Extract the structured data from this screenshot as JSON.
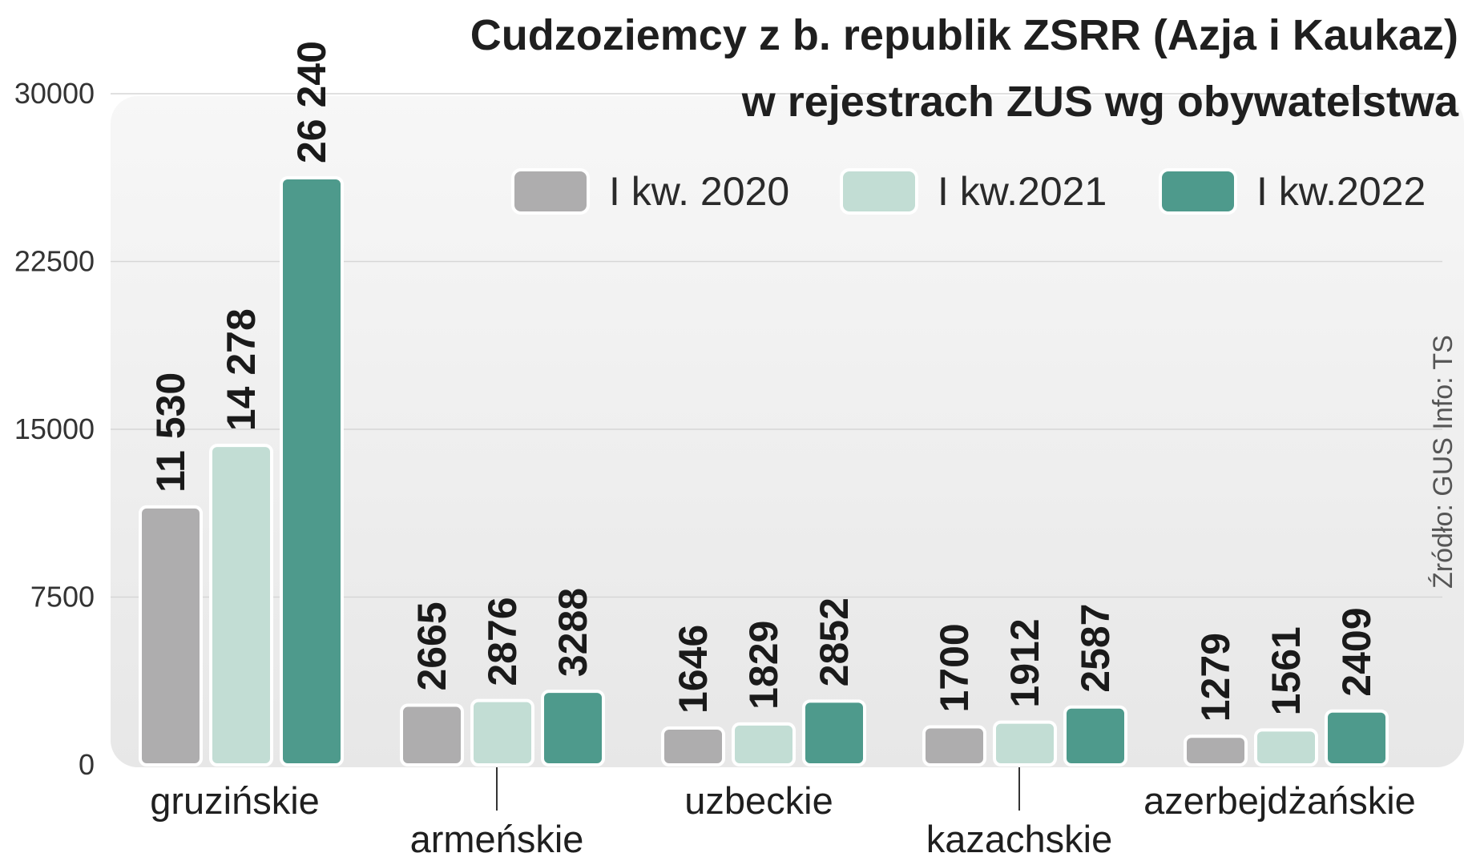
{
  "chart_data": {
    "type": "bar",
    "title": [
      "Cudzoziemcy z b. republik ZSRR (Azja i Kaukaz)",
      "w rejestrach ZUS wg obywatelstwa"
    ],
    "categories": [
      "gruzińskie",
      "armeńskie",
      "uzbeckie",
      "kazachskie",
      "azerbejdżańskie"
    ],
    "series": [
      {
        "name": "I kw. 2020",
        "color": "#aeadae",
        "values": [
          11530,
          2665,
          1646,
          1700,
          1279
        ],
        "labels": [
          "11 530",
          "2665",
          "1646",
          "1700",
          "1279"
        ]
      },
      {
        "name": "I kw.2021",
        "color": "#c2ddd4",
        "values": [
          14278,
          2876,
          1829,
          1912,
          1561
        ],
        "labels": [
          "14 278",
          "2876",
          "1829",
          "1912",
          "1561"
        ]
      },
      {
        "name": "I kw.2022",
        "color": "#4e9a8c",
        "values": [
          26240,
          3288,
          2852,
          2587,
          2409
        ],
        "labels": [
          "26 240",
          "3288",
          "2852",
          "2587",
          "2409"
        ]
      }
    ],
    "yticks": [
      0,
      7500,
      15000,
      22500,
      30000
    ],
    "ylim": [
      0,
      30000
    ],
    "legend_position": "top-right",
    "grid": true,
    "source": "Źródło: GUS   Info: TS"
  }
}
